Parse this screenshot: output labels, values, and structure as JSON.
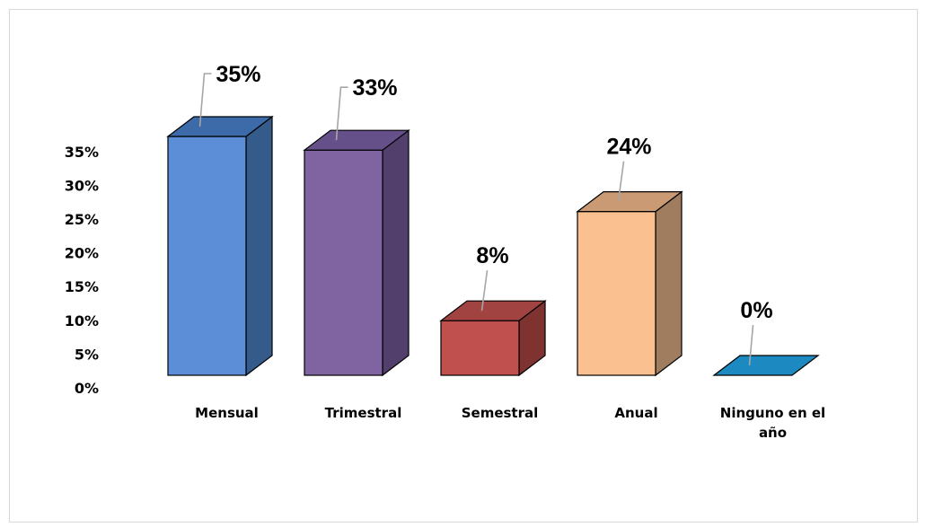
{
  "chart_data": {
    "type": "bar",
    "style": "3d-column",
    "categories": [
      "Mensual",
      "Trimestral",
      "Semestral",
      "Anual",
      "Ninguno en el año"
    ],
    "category_lines": [
      [
        "Mensual"
      ],
      [
        "Trimestral"
      ],
      [
        "Semestral"
      ],
      [
        "Anual"
      ],
      [
        "Ninguno en el",
        "año"
      ]
    ],
    "values": [
      35,
      33,
      8,
      24,
      0
    ],
    "data_labels": [
      "35%",
      "33%",
      "8%",
      "24%",
      "0%"
    ],
    "yticks": [
      "0%",
      "5%",
      "10%",
      "15%",
      "20%",
      "25%",
      "30%",
      "35%"
    ],
    "ylim": [
      0,
      35
    ],
    "grid": false,
    "legend": "none",
    "colors": [
      {
        "front": "#5B8ED6",
        "side": "#355B8A",
        "top": "#3D6AA8"
      },
      {
        "front": "#8064A2",
        "side": "#523F6B",
        "top": "#66508A"
      },
      {
        "front": "#C0504D",
        "side": "#7E3331",
        "top": "#A14340"
      },
      {
        "front": "#FAC090",
        "side": "#A07D5E",
        "top": "#C99A73"
      },
      {
        "front": "#1F8FC4",
        "side": "#15648A",
        "top": "#1C8AC0"
      }
    ]
  }
}
